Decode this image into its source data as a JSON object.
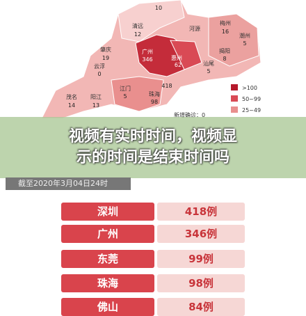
{
  "map": {
    "top_count": "10",
    "shenzhen_count": "418",
    "regions": [
      {
        "name": "清远",
        "count": "12"
      },
      {
        "name": "河源"
      },
      {
        "name": "梅州",
        "count": "16"
      },
      {
        "name": "潮州",
        "count": "5"
      },
      {
        "name": "肇庆",
        "count": "19"
      },
      {
        "name": "广州",
        "count": "346"
      },
      {
        "name": "惠州",
        "count": "62"
      },
      {
        "name": "揭阳",
        "count": "8"
      },
      {
        "name": "汕尾",
        "count": "5"
      },
      {
        "name": "云浮",
        "count": "0"
      },
      {
        "name": "茂名",
        "count": "14"
      },
      {
        "name": "阳江",
        "count": "13"
      },
      {
        "name": "江门",
        "count": "5"
      },
      {
        "name": "珠海",
        "count": "98"
      }
    ]
  },
  "legend": [
    ">100",
    "50~99",
    "25~49"
  ],
  "stats": [
    "新增确诊：0"
  ],
  "overlay": {
    "title_lines": [
      "视频有实时时间，视频显",
      "示的时间是结束时间吗"
    ]
  },
  "caption": "截至2020年3月04日24时",
  "table": {
    "rows": [
      [
        "深圳",
        "418例"
      ],
      [
        "广州",
        "346例"
      ],
      [
        "东莞",
        "99例"
      ],
      [
        "珠海",
        "98例"
      ],
      [
        "佛山",
        "84例"
      ]
    ]
  }
}
